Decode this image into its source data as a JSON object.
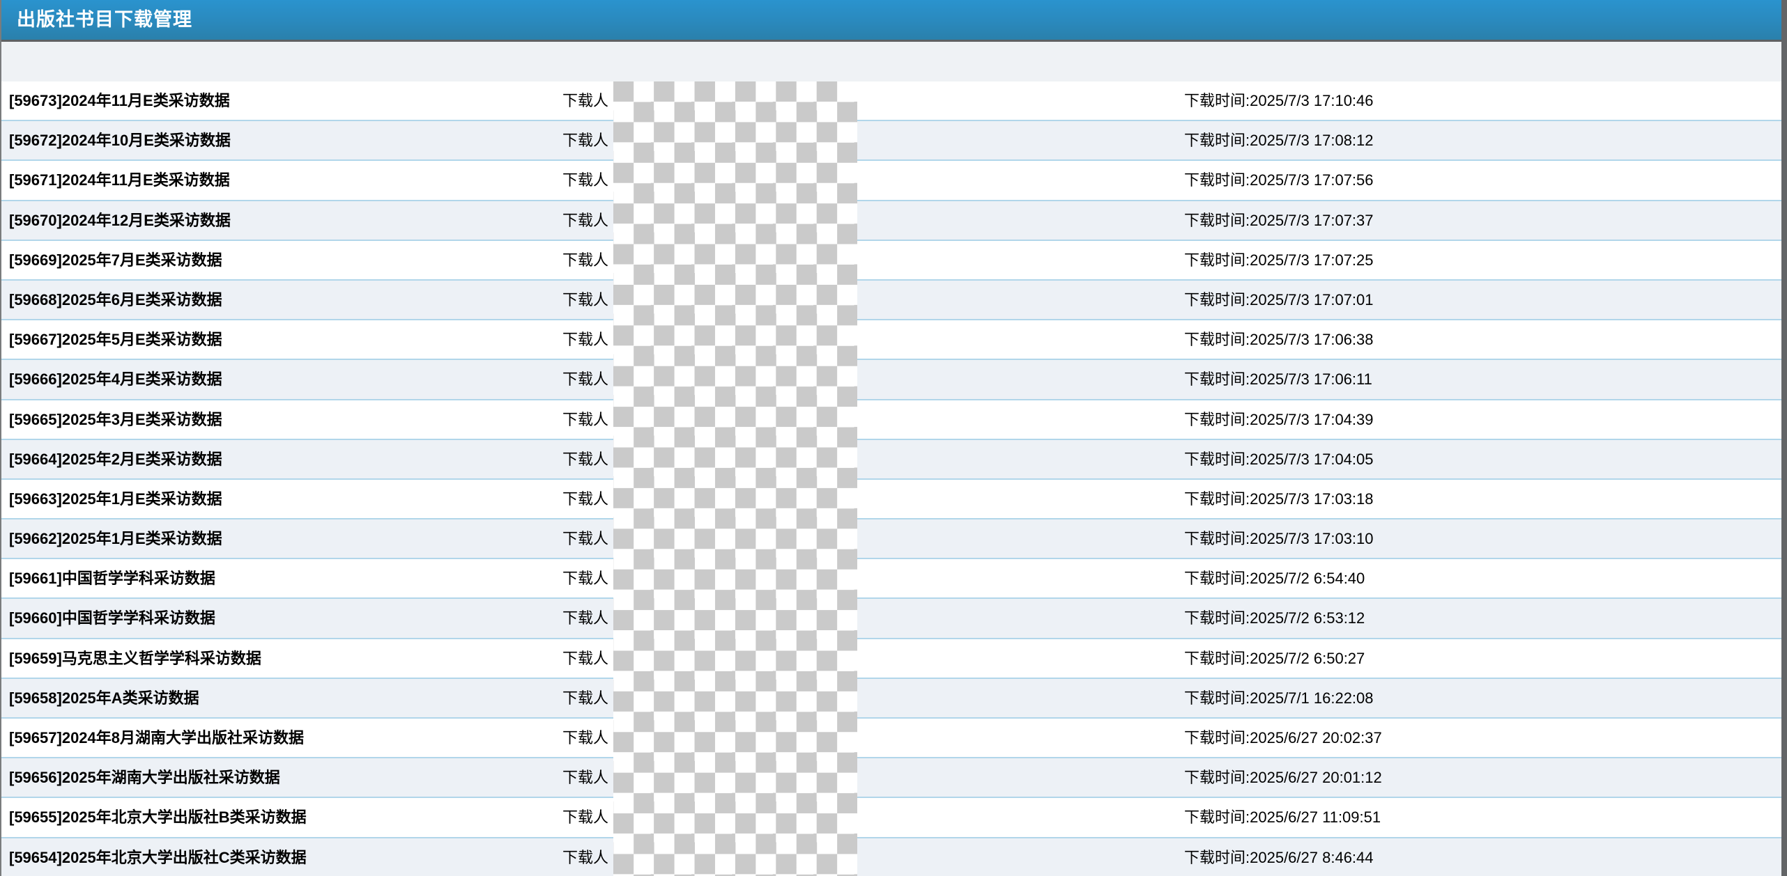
{
  "header": {
    "title": "出版社书目下载管理"
  },
  "labels": {
    "downloader": "下载人",
    "time_prefix": "下载时间:"
  },
  "colors": {
    "header_gradient_top": "#2a93ce",
    "header_gradient_bottom": "#2a80ab",
    "header_border": "#5f6163",
    "page_background": "#eff2f5",
    "row_background": "#ffffff",
    "row_alt_background": "#edf1f6",
    "row_separator": "#b1d6ea",
    "right_edge_bar": "#636567",
    "redaction_checker_gray": "#cacaca"
  },
  "rows": [
    {
      "title": "[59673]2024年11月E类采访数据",
      "time": "2025/7/3 17:10:46"
    },
    {
      "title": "[59672]2024年10月E类采访数据",
      "time": "2025/7/3 17:08:12"
    },
    {
      "title": "[59671]2024年11月E类采访数据",
      "time": "2025/7/3 17:07:56"
    },
    {
      "title": "[59670]2024年12月E类采访数据",
      "time": "2025/7/3 17:07:37"
    },
    {
      "title": "[59669]2025年7月E类采访数据",
      "time": "2025/7/3 17:07:25"
    },
    {
      "title": "[59668]2025年6月E类采访数据",
      "time": "2025/7/3 17:07:01"
    },
    {
      "title": "[59667]2025年5月E类采访数据",
      "time": "2025/7/3 17:06:38"
    },
    {
      "title": "[59666]2025年4月E类采访数据",
      "time": "2025/7/3 17:06:11"
    },
    {
      "title": "[59665]2025年3月E类采访数据",
      "time": "2025/7/3 17:04:39"
    },
    {
      "title": "[59664]2025年2月E类采访数据",
      "time": "2025/7/3 17:04:05"
    },
    {
      "title": "[59663]2025年1月E类采访数据",
      "time": "2025/7/3 17:03:18"
    },
    {
      "title": "[59662]2025年1月E类采访数据",
      "time": "2025/7/3 17:03:10"
    },
    {
      "title": "[59661]中国哲学学科采访数据",
      "time": "2025/7/2 6:54:40"
    },
    {
      "title": "[59660]中国哲学学科采访数据",
      "time": "2025/7/2 6:53:12"
    },
    {
      "title": "[59659]马克思主义哲学学科采访数据",
      "time": "2025/7/2 6:50:27"
    },
    {
      "title": "[59658]2025年A类采访数据",
      "time": "2025/7/1 16:22:08"
    },
    {
      "title": "[59657]2024年8月湖南大学出版社采访数据",
      "time": "2025/6/27 20:02:37"
    },
    {
      "title": "[59656]2025年湖南大学出版社采访数据",
      "time": "2025/6/27 20:01:12"
    },
    {
      "title": "[59655]2025年北京大学出版社B类采访数据",
      "time": "2025/6/27 11:09:51"
    },
    {
      "title": "[59654]2025年北京大学出版社C类采访数据",
      "time": "2025/6/27 8:46:44"
    }
  ]
}
